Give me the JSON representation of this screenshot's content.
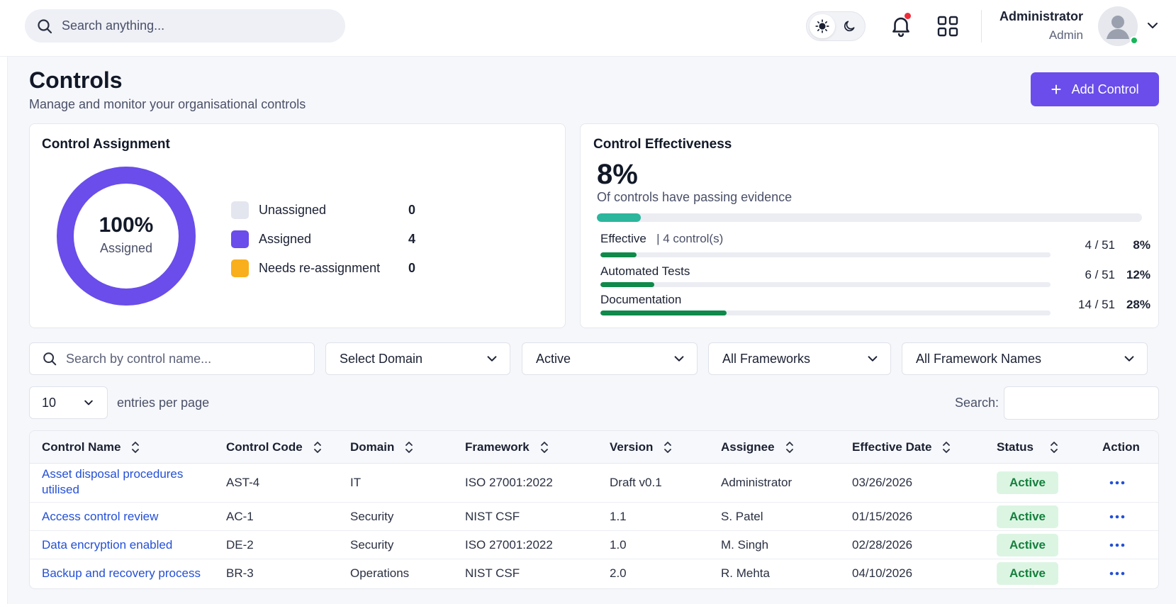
{
  "header": {
    "search_placeholder": "Search anything...",
    "user_name": "Administrator",
    "user_role": "Admin",
    "icons": [
      "search-icon",
      "sun-icon",
      "moon-icon",
      "bell-icon",
      "grid-icon",
      "avatar",
      "chevron-down-icon"
    ],
    "notification_dot_color": "#ef2b3a",
    "online_status_color": "#18b55a"
  },
  "page": {
    "title": "Controls",
    "subtitle": "Manage and monitor your organisational controls",
    "add_button_label": "Add Control",
    "accent_color": "#6a4dea"
  },
  "assignment": {
    "title": "Control Assignment",
    "center_value": "100%",
    "center_label": "Assigned",
    "assigned_fraction": 1.0,
    "legend": [
      {
        "label": "Unassigned",
        "value": "0",
        "color": "#e3e6ee"
      },
      {
        "label": "Assigned",
        "value": "4",
        "color": "#6a4dea"
      },
      {
        "label": "Needs re-assignment",
        "value": "0",
        "color": "#f9ae1b"
      }
    ]
  },
  "effectiveness": {
    "title": "Control Effectiveness",
    "headline_pct": "8%",
    "headline_desc": "Of controls have passing evidence",
    "headline_fraction": 0.08,
    "headline_color": "#2bb69d",
    "metrics": [
      {
        "label": "Effective",
        "sub": "4 control(s)",
        "ratio": "4 / 51",
        "pct": "8%",
        "fraction": 0.08
      },
      {
        "label": "Automated Tests",
        "sub": "",
        "ratio": "6 / 51",
        "pct": "12%",
        "fraction": 0.12
      },
      {
        "label": "Documentation",
        "sub": "",
        "ratio": "14 / 51",
        "pct": "28%",
        "fraction": 0.28
      }
    ],
    "metric_color": "#0f8a4a"
  },
  "filters": {
    "search_placeholder": "Search by control name...",
    "domain": "Select Domain",
    "status": "Active",
    "frameworks": "All Frameworks",
    "framework_names": "All Framework Names"
  },
  "table_controls": {
    "page_size": "10",
    "entries_label": "entries per page",
    "search_label": "Search:"
  },
  "table": {
    "columns": [
      "Control Name",
      "Control Code",
      "Domain",
      "Framework",
      "Version",
      "Assignee",
      "Effective Date",
      "Status",
      "Action"
    ],
    "rows": [
      {
        "name_line1": "Asset disposal procedures",
        "name_line2": "utilised",
        "code": "AST-4",
        "domain": "IT",
        "framework": "ISO 27001:2022",
        "version": "Draft v0.1",
        "assignee": "Administrator",
        "date": "03/26/2026",
        "status": "Active"
      },
      {
        "name_line1": "Access control review",
        "name_line2": "",
        "code": "AC-1",
        "domain": "Security",
        "framework": "NIST CSF",
        "version": "1.1",
        "assignee": "S. Patel",
        "date": "01/15/2026",
        "status": "Active"
      },
      {
        "name_line1": "Data encryption enabled",
        "name_line2": "",
        "code": "DE-2",
        "domain": "Security",
        "framework": "ISO 27001:2022",
        "version": "1.0",
        "assignee": "M. Singh",
        "date": "02/28/2026",
        "status": "Active"
      },
      {
        "name_line1": "Backup and recovery process",
        "name_line2": "",
        "code": "BR-3",
        "domain": "Operations",
        "framework": "NIST CSF",
        "version": "2.0",
        "assignee": "R. Mehta",
        "date": "04/10/2026",
        "status": "Active"
      }
    ]
  }
}
